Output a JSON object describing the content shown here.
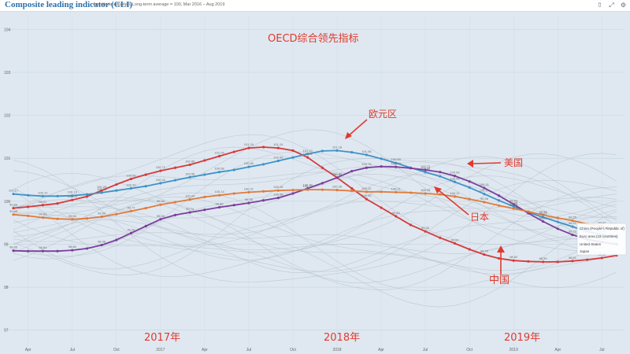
{
  "header": {
    "title": "Composite leading indicator (CLI)",
    "subtitle": "Amplitude adjusted, Long-term average = 100, Mar 2016 – Aug 2019"
  },
  "annotations": {
    "main_title": "OECD综合领先指标",
    "euro": "欧元区",
    "us": "美国",
    "japan": "日本",
    "china": "中国",
    "year_2017": "2017年",
    "year_2018": "2018年",
    "year_2019": "2019年"
  },
  "legend_tooltip": {
    "china": "China (People's Republic of)",
    "euro": "Euro area (19 countries)",
    "us": "United States",
    "japan": "Japan"
  },
  "chart_data": {
    "type": "line",
    "ylim": [
      96.5,
      104.3
    ],
    "yticks": [
      "104",
      "103",
      "102",
      "101",
      "100",
      "99",
      "98",
      "97"
    ],
    "xtick_labels": [
      "Apr",
      "Jul",
      "Oct",
      "2017",
      "Apr",
      "Jul",
      "Oct",
      "2018",
      "Apr",
      "Jul",
      "Oct",
      "2019",
      "Apr",
      "Jul"
    ],
    "x": [
      "2016-03",
      "2016-04",
      "2016-05",
      "2016-06",
      "2016-07",
      "2016-08",
      "2016-09",
      "2016-10",
      "2016-11",
      "2016-12",
      "2017-01",
      "2017-02",
      "2017-03",
      "2017-04",
      "2017-05",
      "2017-06",
      "2017-07",
      "2017-08",
      "2017-09",
      "2017-10",
      "2017-11",
      "2017-12",
      "2018-01",
      "2018-02",
      "2018-03",
      "2018-04",
      "2018-05",
      "2018-06",
      "2018-07",
      "2018-08",
      "2018-09",
      "2018-10",
      "2018-11",
      "2018-12",
      "2019-01",
      "2019-02",
      "2019-03",
      "2019-04",
      "2019-05",
      "2019-06",
      "2019-07",
      "2019-08"
    ],
    "grid": true,
    "legend": "none",
    "series": [
      {
        "name": "China (People's Republic of)",
        "color": "#d63a3a",
        "values": [
          99.84,
          99.87,
          99.91,
          99.95,
          100.03,
          100.11,
          100.25,
          100.39,
          100.52,
          100.62,
          100.71,
          100.78,
          100.85,
          100.95,
          101.05,
          101.15,
          101.24,
          101.26,
          101.24,
          101.18,
          101.02,
          100.78,
          100.55,
          100.3,
          100.05,
          99.85,
          99.65,
          99.45,
          99.3,
          99.15,
          99.02,
          98.88,
          98.76,
          98.67,
          98.62,
          98.6,
          98.59,
          98.59,
          98.61,
          98.64,
          98.68,
          98.74
        ]
      },
      {
        "name": "Euro area (19 countries)",
        "color": "#3d93c8",
        "values": [
          100.17,
          100.14,
          100.12,
          100.12,
          100.13,
          100.16,
          100.2,
          100.25,
          100.3,
          100.35,
          100.42,
          100.49,
          100.56,
          100.62,
          100.68,
          100.73,
          100.8,
          100.86,
          100.94,
          101.02,
          101.1,
          101.17,
          101.18,
          101.14,
          101.08,
          100.99,
          100.89,
          100.78,
          100.68,
          100.58,
          100.45,
          100.32,
          100.17,
          100.02,
          99.88,
          99.74,
          99.63,
          99.52,
          99.41,
          99.3,
          99.22,
          99.18
        ]
      },
      {
        "name": "United States",
        "color": "#7b3f9b",
        "values": [
          98.85,
          98.84,
          98.84,
          98.84,
          98.86,
          98.9,
          98.98,
          99.1,
          99.26,
          99.42,
          99.58,
          99.68,
          99.74,
          99.8,
          99.86,
          99.91,
          99.96,
          100.02,
          100.08,
          100.18,
          100.3,
          100.42,
          100.55,
          100.7,
          100.78,
          100.81,
          100.8,
          100.77,
          100.73,
          100.68,
          100.59,
          100.46,
          100.31,
          100.13,
          99.93,
          99.72,
          99.53,
          99.36,
          99.22,
          99.11,
          99.05,
          99.0
        ]
      },
      {
        "name": "Japan",
        "color": "#e07b39",
        "values": [
          99.69,
          99.66,
          99.62,
          99.59,
          99.58,
          99.6,
          99.64,
          99.7,
          99.77,
          99.84,
          99.92,
          99.98,
          100.04,
          100.1,
          100.14,
          100.18,
          100.21,
          100.23,
          100.25,
          100.26,
          100.27,
          100.27,
          100.26,
          100.24,
          100.22,
          100.22,
          100.21,
          100.2,
          100.18,
          100.16,
          100.11,
          100.05,
          99.98,
          99.9,
          99.83,
          99.76,
          99.68,
          99.61,
          99.55,
          99.47,
          99.42,
          99.35
        ]
      }
    ]
  }
}
